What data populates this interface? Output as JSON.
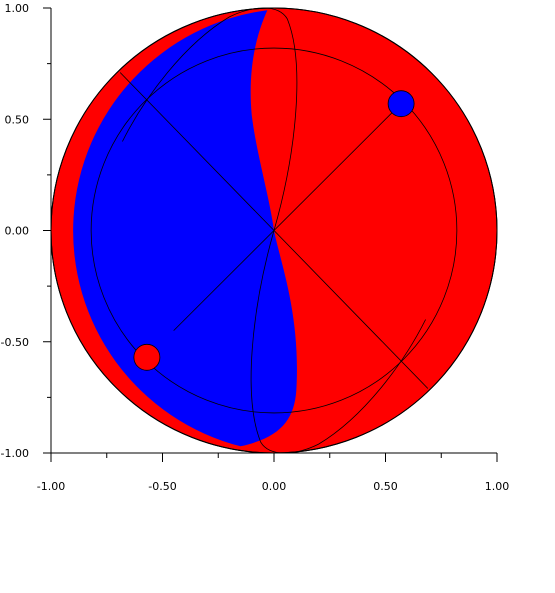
{
  "chart_data": {
    "type": "scatter",
    "title": "",
    "xlabel": "",
    "ylabel": "",
    "xlim": [
      -1.0,
      1.0
    ],
    "ylim": [
      -1.0,
      1.0
    ],
    "grid": false,
    "x_ticks": [
      -1.0,
      -0.5,
      0.0,
      0.5,
      1.0
    ],
    "y_ticks": [
      -1.0,
      -0.5,
      0.0,
      0.5,
      1.0
    ],
    "x_tick_labels": [
      "-1.00",
      "-0.50",
      "0.00",
      "0.50",
      "1.00"
    ],
    "y_tick_labels": [
      "-1.00",
      "-0.50",
      "0.00",
      "0.50",
      "1.00"
    ],
    "disk": {
      "center": [
        0.0,
        0.0
      ],
      "radius": 1.0
    },
    "inner_circle": {
      "center": [
        0.0,
        0.0
      ],
      "radius": 0.82
    },
    "points": [
      {
        "x": 0.57,
        "y": 0.57,
        "color": "blue"
      },
      {
        "x": -0.57,
        "y": -0.57,
        "color": "red"
      }
    ],
    "colors": {
      "left_region": "#0000ff",
      "right_region": "#ff0000",
      "line": "#000000"
    }
  }
}
